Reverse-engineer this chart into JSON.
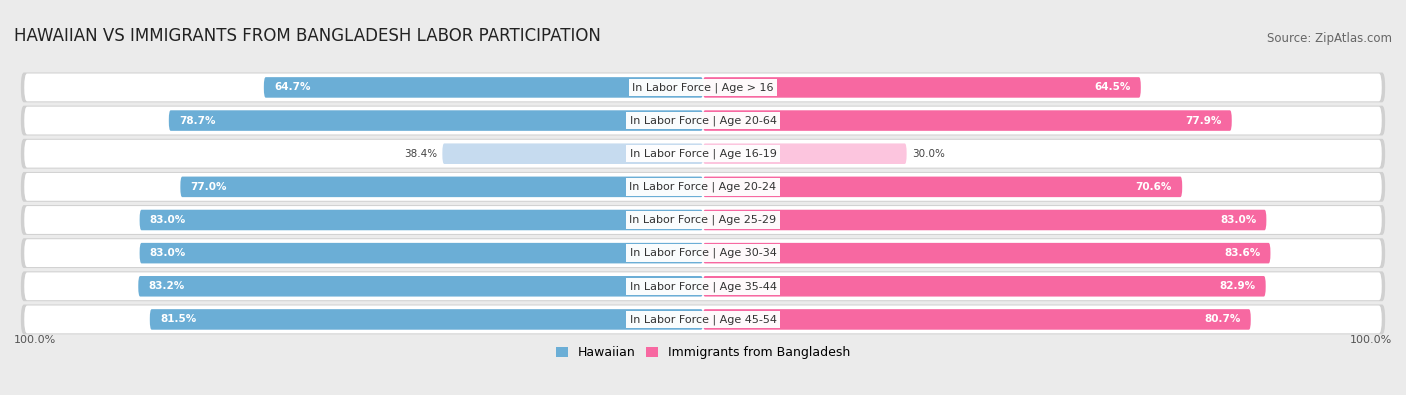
{
  "title": "HAWAIIAN VS IMMIGRANTS FROM BANGLADESH LABOR PARTICIPATION",
  "source": "Source: ZipAtlas.com",
  "categories": [
    "In Labor Force | Age > 16",
    "In Labor Force | Age 20-64",
    "In Labor Force | Age 16-19",
    "In Labor Force | Age 20-24",
    "In Labor Force | Age 25-29",
    "In Labor Force | Age 30-34",
    "In Labor Force | Age 35-44",
    "In Labor Force | Age 45-54"
  ],
  "hawaiian": [
    64.7,
    78.7,
    38.4,
    77.0,
    83.0,
    83.0,
    83.2,
    81.5
  ],
  "bangladesh": [
    64.5,
    77.9,
    30.0,
    70.6,
    83.0,
    83.6,
    82.9,
    80.7
  ],
  "color_hawaiian": "#6baed6",
  "color_hawaiian_light": "#c6dbef",
  "color_bangladesh": "#f768a1",
  "color_bangladesh_light": "#fcc5de",
  "bar_height": 0.62,
  "max_value": 100.0,
  "background_color": "#ebebeb",
  "row_bg_color": "#ffffff",
  "row_border_color": "#d0d0d0",
  "title_fontsize": 12,
  "source_fontsize": 8.5,
  "label_fontsize": 8,
  "value_fontsize": 7.5,
  "legend_fontsize": 9,
  "axis_label_fontsize": 8
}
